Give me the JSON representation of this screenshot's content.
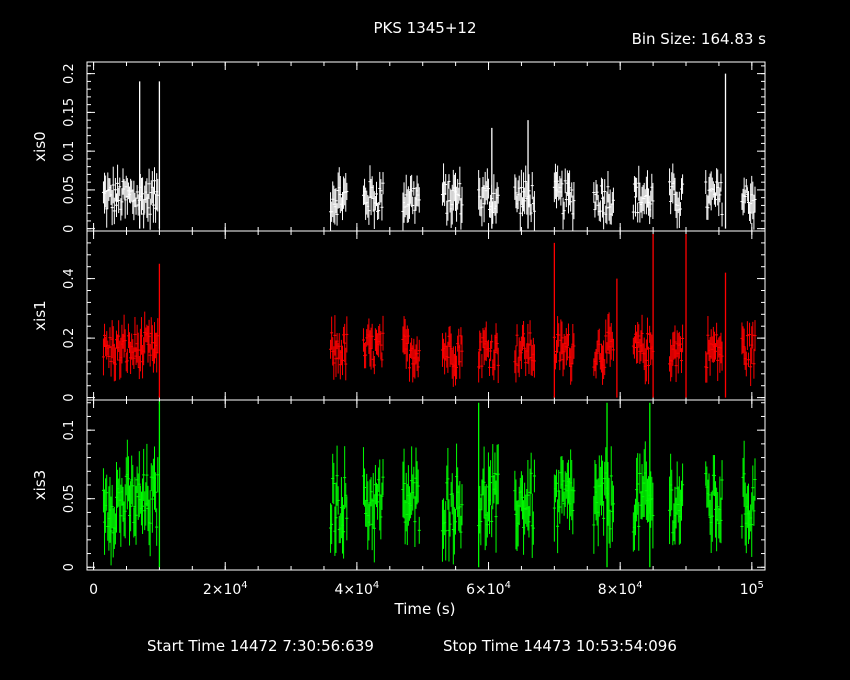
{
  "title": "PKS 1345+12",
  "bin_size": "Bin Size: 164.83 s",
  "footer": {
    "start": "Start Time 14472  7:30:56:639",
    "stop": "Stop Time 14473 10:53:54:096"
  },
  "chart_data": {
    "type": "line",
    "xlabel": "Time (s)",
    "xlim": [
      -1000,
      102000
    ],
    "xticks": [
      {
        "value": 0,
        "label": "0"
      },
      {
        "value": 20000,
        "label": "2×10",
        "exp": "4"
      },
      {
        "value": 40000,
        "label": "4×10",
        "exp": "4"
      },
      {
        "value": 60000,
        "label": "6×10",
        "exp": "4"
      },
      {
        "value": 80000,
        "label": "8×10",
        "exp": "4"
      },
      {
        "value": 100000,
        "label": "10",
        "exp": "5"
      }
    ],
    "segments": [
      [
        1500,
        9800
      ],
      [
        36000,
        38500
      ],
      [
        41000,
        44000
      ],
      [
        47000,
        49500
      ],
      [
        53000,
        56000
      ],
      [
        58500,
        61500
      ],
      [
        64000,
        67000
      ],
      [
        70000,
        73000
      ],
      [
        76000,
        79000
      ],
      [
        82000,
        85000
      ],
      [
        87500,
        89500
      ],
      [
        93000,
        95500
      ],
      [
        98500,
        100500
      ]
    ],
    "panels": [
      {
        "name": "xis0",
        "color": "#ffffff",
        "ylim": [
          -0.003,
          0.215
        ],
        "yticks": [
          0,
          0.05,
          0.1,
          0.15,
          0.2
        ],
        "mean": 0.04,
        "spread": 0.022,
        "spikes": [
          [
            7000,
            0.19
          ],
          [
            10000,
            0.19
          ],
          [
            96000,
            0.2
          ],
          [
            66000,
            0.14
          ],
          [
            60500,
            0.13
          ]
        ]
      },
      {
        "name": "xis1",
        "color": "#ff0000",
        "ylim": [
          -0.008,
          0.56
        ],
        "yticks": [
          0,
          0.2,
          0.4
        ],
        "mean": 0.16,
        "spread": 0.06,
        "spikes": [
          [
            10000,
            0.45
          ],
          [
            70000,
            0.52
          ],
          [
            85000,
            0.55
          ],
          [
            90000,
            0.55
          ],
          [
            96000,
            0.42
          ],
          [
            79500,
            0.4
          ]
        ]
      },
      {
        "name": "xis3",
        "color": "#00ff00",
        "ylim": [
          -0.002,
          0.122
        ],
        "yticks": [
          0,
          0.05,
          0.1
        ],
        "mean": 0.047,
        "spread": 0.022,
        "spikes": [
          [
            10000,
            0.121
          ],
          [
            58500,
            0.12
          ],
          [
            84500,
            0.12
          ],
          [
            78000,
            0.12
          ]
        ]
      }
    ]
  }
}
